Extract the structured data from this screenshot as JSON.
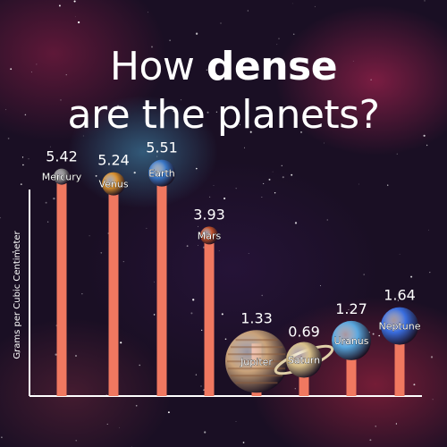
{
  "title": {
    "line1_pre": "How ",
    "line1_bold": "dense",
    "line2": "are the planets?"
  },
  "chart_data": {
    "type": "bar",
    "title": "How dense are the planets?",
    "ylabel": "Grams per Cubic Centimeter",
    "xlabel": "",
    "ylim": [
      0,
      6
    ],
    "categories": [
      "Mercury",
      "Venus",
      "Earth",
      "Mars",
      "Jupiter",
      "Saturn",
      "Uranus",
      "Neptune"
    ],
    "values": [
      5.42,
      5.24,
      5.51,
      3.93,
      1.33,
      0.69,
      1.27,
      1.64
    ],
    "value_labels": [
      "5.42",
      "5.24",
      "5.51",
      "3.93",
      "1.33",
      "0.69",
      "1.27",
      "1.64"
    ],
    "bar_color": "#f07860",
    "axis_color": "#ffffff",
    "planet_colors": [
      "#8c8c8c",
      "#d9902e",
      "#3a78c8",
      "#c0502a",
      "#c9a27a",
      "#d8c08a",
      "#5aa8e0",
      "#3a6ee0"
    ]
  }
}
